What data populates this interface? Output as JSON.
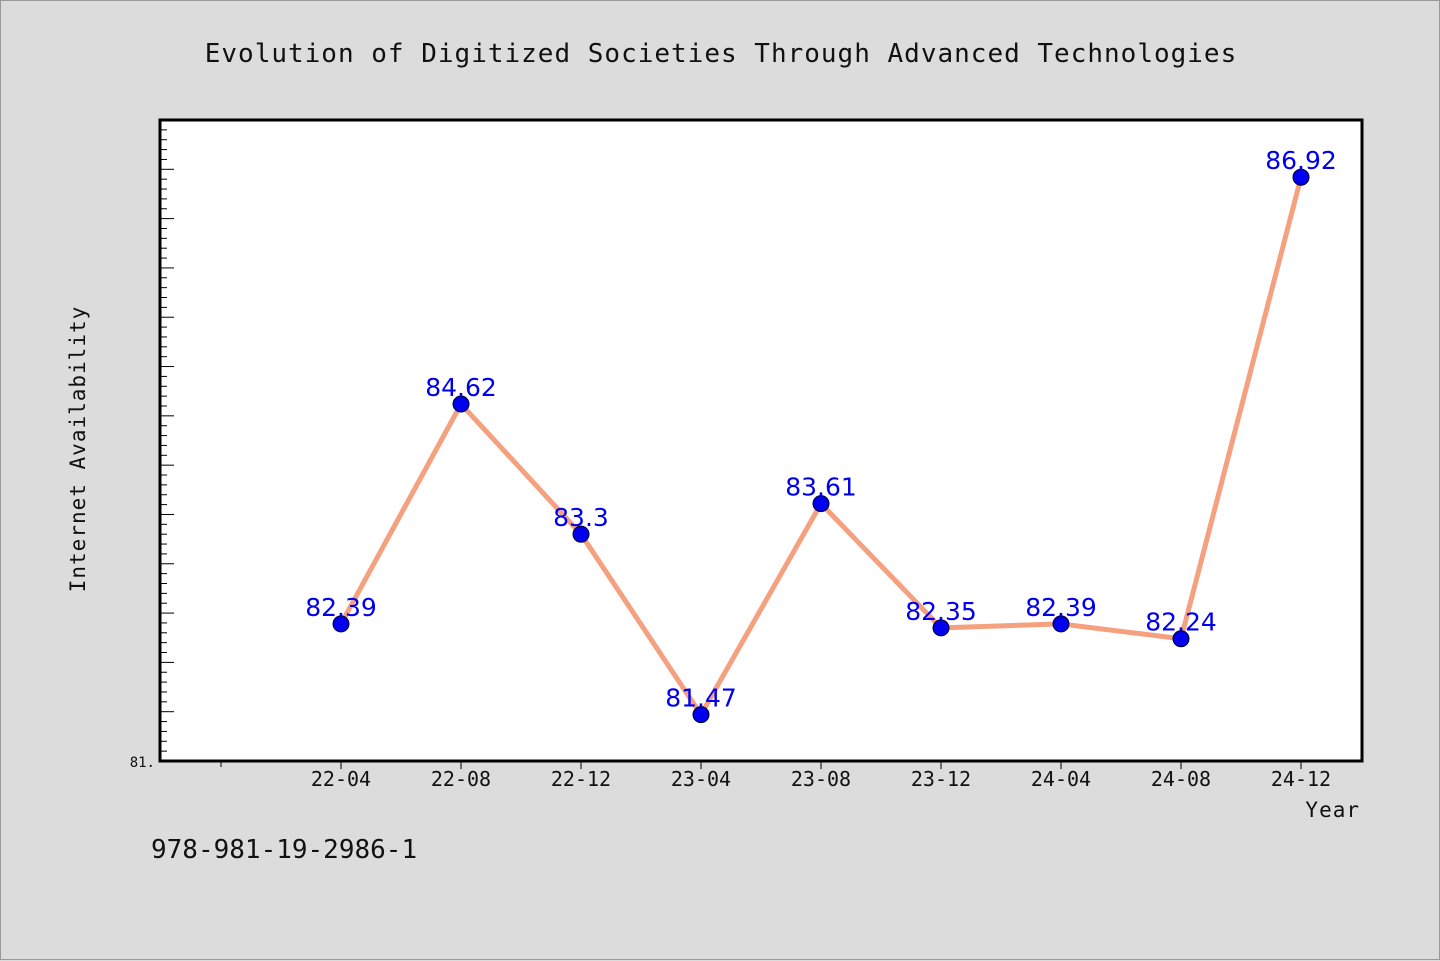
{
  "chart_data": {
    "type": "line",
    "title": "Evolution of Digitized Societies Through Advanced Technologies",
    "xlabel": "Year",
    "ylabel": "Internet Availability",
    "categories": [
      "22-04",
      "22-08",
      "22-12",
      "23-04",
      "23-08",
      "23-12",
      "24-04",
      "24-08",
      "24-12"
    ],
    "series": [
      {
        "values": [
          82.39,
          84.62,
          83.3,
          81.47,
          83.61,
          82.35,
          82.39,
          82.24,
          86.92
        ],
        "labels": [
          "82.39",
          "84.62",
          "83.3",
          "81.47",
          "83.61",
          "82.35",
          "82.39",
          "82.24",
          "86.92"
        ]
      }
    ],
    "y_min_label": "81.",
    "ylim": [
      81.0,
      87.5
    ],
    "grid": false,
    "line_color": "#f5a07f",
    "marker_color": "#0000ee",
    "label_color": "#0000ee"
  },
  "footer": {
    "code": "978-981-19-2986-1"
  }
}
